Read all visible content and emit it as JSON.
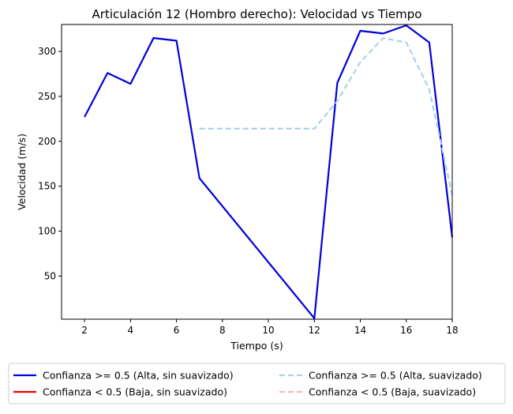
{
  "chart_data": {
    "type": "line",
    "title": "Articulación 12 (Hombro derecho): Velocidad vs Tiempo",
    "xlabel": "Tiempo (s)",
    "ylabel": "Velocidad (m/s)",
    "xlim": [
      1,
      18
    ],
    "ylim": [
      2,
      330
    ],
    "x_ticks": [
      2,
      4,
      6,
      8,
      10,
      12,
      14,
      16,
      18
    ],
    "y_ticks": [
      50,
      100,
      150,
      200,
      250,
      300
    ],
    "grid": false,
    "legend_position": "below",
    "series": [
      {
        "name": "Confianza >= 0.5 (Alta, sin suavizado)",
        "color": "#0000dd",
        "style": "solid",
        "x": [
          2,
          3,
          4,
          5,
          6,
          7,
          12,
          13,
          14,
          15,
          16,
          17,
          18
        ],
        "y": [
          227,
          276,
          264,
          315,
          312,
          159,
          3,
          265,
          323,
          320,
          329,
          310,
          93
        ]
      },
      {
        "name": "Confianza < 0.5 (Baja, sin suavizado)",
        "color": "#ee0000",
        "style": "solid",
        "x": [],
        "y": []
      },
      {
        "name": "Confianza >= 0.5 (Alta, suavizado)",
        "color": "#a8d4e8",
        "style": "dashed",
        "x": [
          7,
          12,
          13,
          14,
          15,
          16,
          17,
          18
        ],
        "y": [
          214,
          214,
          245,
          288,
          315,
          310,
          258,
          140
        ]
      },
      {
        "name": "Confianza < 0.5 (Baja, suavizado)",
        "color": "#f4b8b8",
        "style": "dashed",
        "x": [],
        "y": []
      }
    ]
  }
}
